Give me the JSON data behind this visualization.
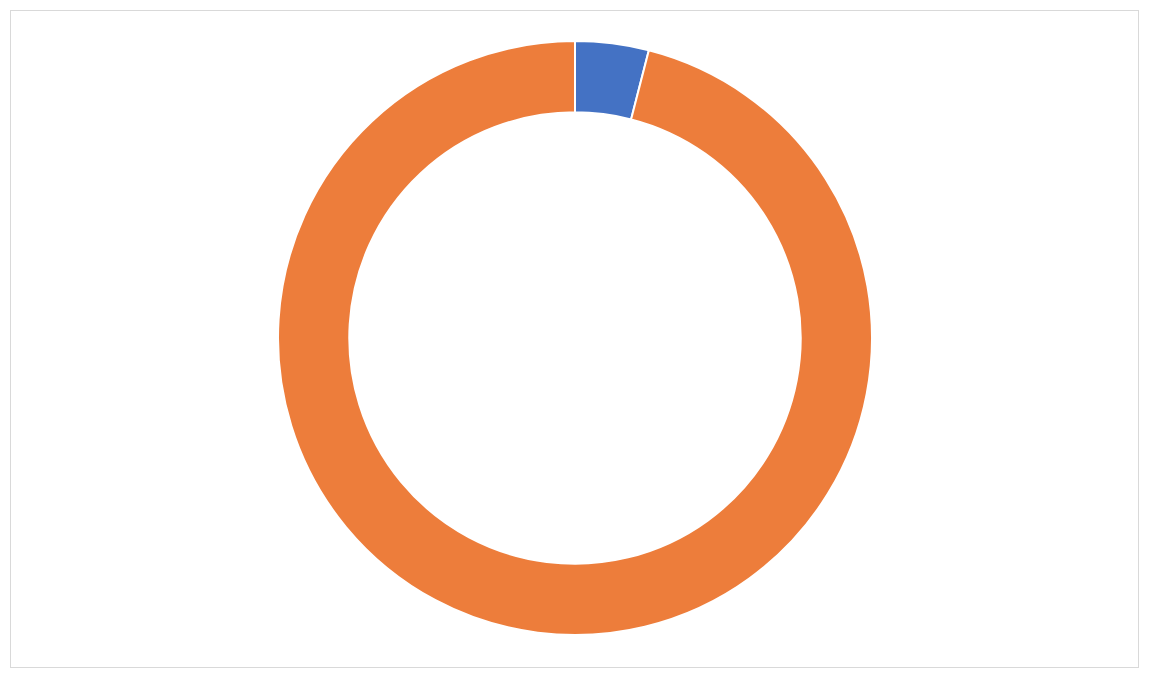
{
  "chart_data": {
    "type": "donut",
    "categories": [
      null,
      null
    ],
    "values": [
      4,
      96
    ],
    "colors": [
      "#4472c4",
      "#ed7d3b"
    ]
  }
}
